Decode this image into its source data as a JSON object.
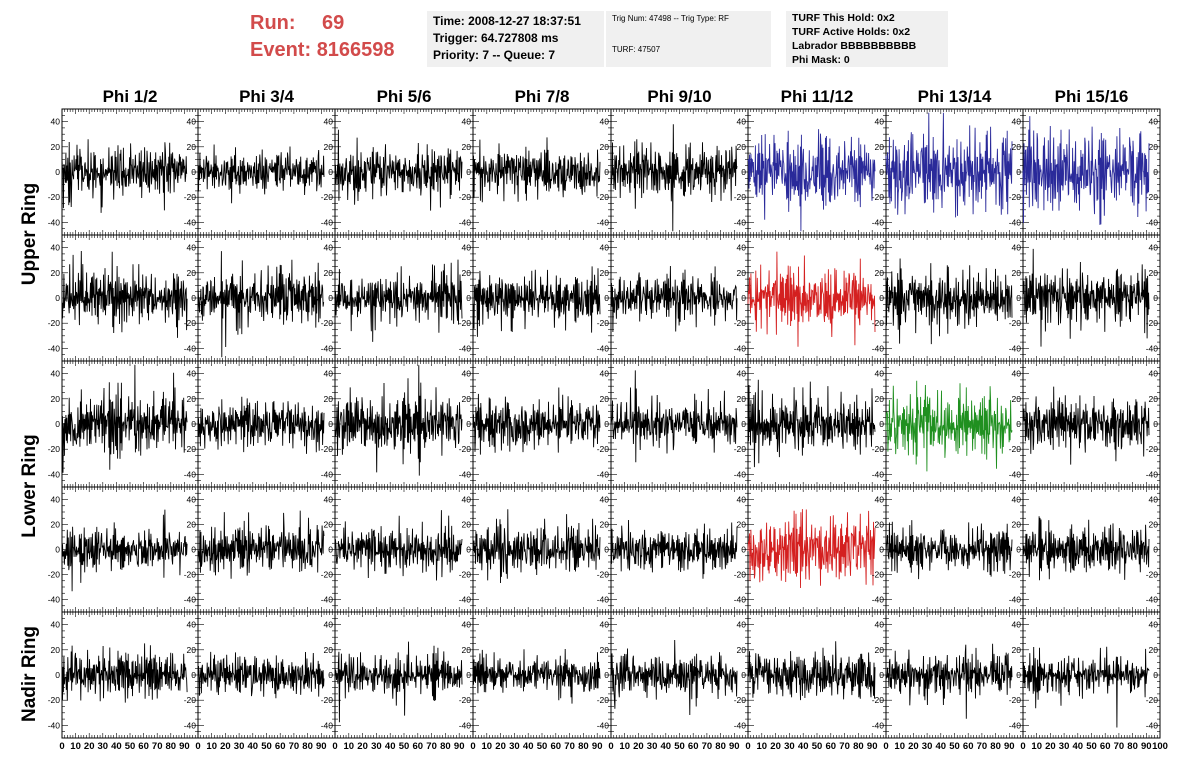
{
  "run_info": {
    "run_label": "Run:",
    "run_value": "69",
    "event_label": "Event:",
    "event_value": "8166598"
  },
  "info_box_1": {
    "time": "Time: 2008-12-27 18:37:51",
    "trigger": "Trigger: 64.727808 ms",
    "priority": "Priority: 7 -- Queue: 7"
  },
  "info_box_2": {
    "trig": "Trig Num: 47498 -- Trig Type: RF",
    "turf": "TURF: 47507"
  },
  "info_box_3": {
    "hold": "TURF This Hold: 0x2",
    "active": "TURF Active Holds: 0x2",
    "labrador": "Labrador BBBBBBBBBB",
    "phimask": "Phi Mask: 0"
  },
  "colors": {
    "normal": "#000000",
    "blue": "#2a2a9a",
    "red": "#d42020",
    "green": "#209020",
    "header_red": "#d24b4b"
  },
  "chart_data": {
    "type": "line",
    "columns": [
      "Phi 1/2",
      "Phi 3/4",
      "Phi 5/6",
      "Phi 7/8",
      "Phi 9/10",
      "Phi 11/12",
      "Phi 13/14",
      "Phi 15/16"
    ],
    "row_groups": [
      {
        "label": "Upper Ring",
        "rows": [
          0,
          1
        ]
      },
      {
        "label": "Lower Ring",
        "rows": [
          2,
          3
        ]
      },
      {
        "label": "Nadir Ring",
        "rows": [
          4
        ]
      }
    ],
    "xlim": [
      0,
      100
    ],
    "ylim": [
      -50,
      50
    ],
    "yticks": [
      -40,
      -20,
      0,
      20,
      40
    ],
    "xtick_labels": [
      "0",
      "10",
      "20",
      "30",
      "40",
      "50",
      "60",
      "70",
      "80",
      "90",
      "100"
    ],
    "samples_per_trace": 260,
    "trace_x_range": [
      0,
      92
    ],
    "highlights": [
      {
        "row": 0,
        "col": 5,
        "color": "blue"
      },
      {
        "row": 0,
        "col": 6,
        "color": "blue"
      },
      {
        "row": 0,
        "col": 7,
        "color": "blue"
      },
      {
        "row": 1,
        "col": 5,
        "color": "red"
      },
      {
        "row": 2,
        "col": 6,
        "color": "green"
      },
      {
        "row": 3,
        "col": 5,
        "color": "red"
      }
    ],
    "amplitudes": [
      [
        14,
        10,
        13,
        12,
        14,
        17,
        20,
        22
      ],
      [
        13,
        14,
        12,
        13,
        12,
        16,
        14,
        15
      ],
      [
        14,
        12,
        15,
        13,
        11,
        14,
        17,
        13
      ],
      [
        11,
        13,
        11,
        13,
        10,
        17,
        11,
        12
      ],
      [
        11,
        9,
        10,
        10,
        11,
        12,
        11,
        10
      ]
    ]
  }
}
